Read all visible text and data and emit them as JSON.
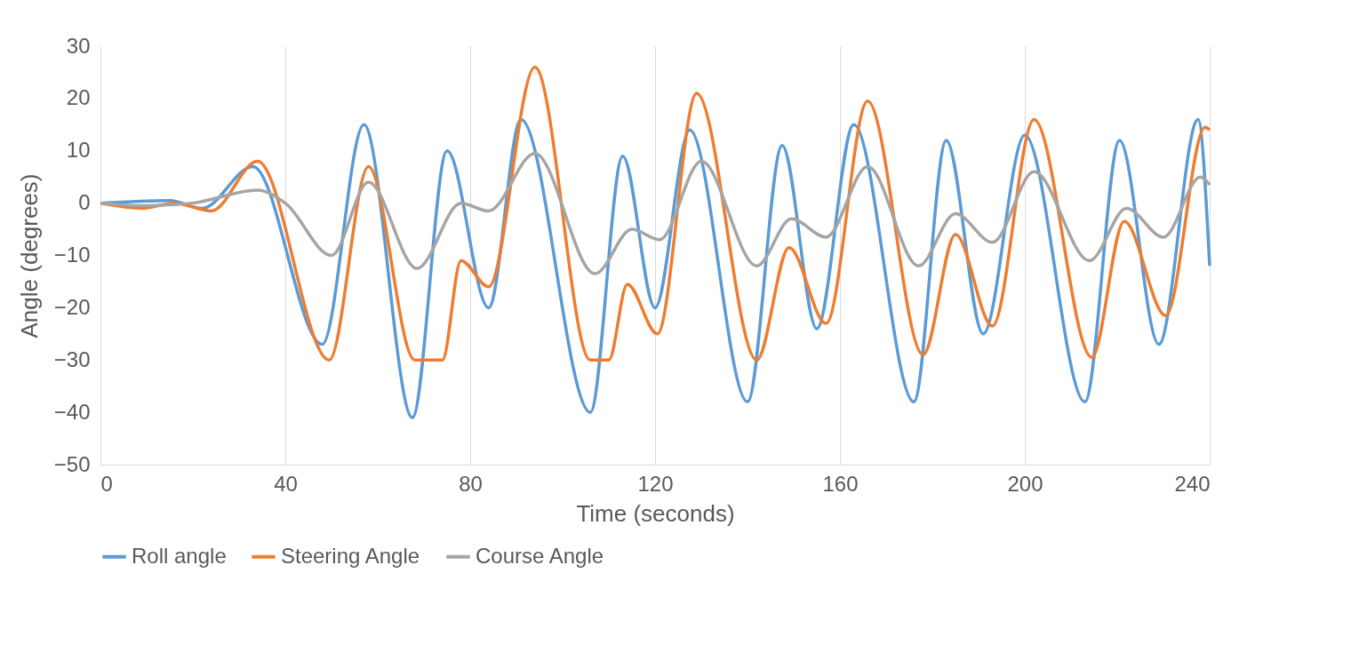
{
  "chart_data": {
    "type": "line",
    "xlabel": "Time (seconds)",
    "ylabel": "Angle (degrees)",
    "xlim": [
      0,
      240
    ],
    "xticks": [
      0,
      40,
      80,
      120,
      160,
      200,
      240
    ],
    "ylim": [
      -50,
      30
    ],
    "yticks": [
      -50,
      -40,
      -30,
      -20,
      -10,
      0,
      10,
      20,
      30
    ],
    "grid": "x",
    "legend": "bottom",
    "marker": "none",
    "line_style": "solid",
    "series": [
      {
        "name": "Roll angle",
        "color": "#5b9bd5",
        "x": [
          0,
          15,
          22,
          33,
          48,
          57,
          67.5,
          75,
          84,
          91,
          106,
          113,
          120,
          127.5,
          140,
          147.5,
          155,
          163,
          176,
          183,
          191,
          200,
          213,
          220.5,
          229,
          237.5,
          240
        ],
        "values": [
          0,
          0.5,
          -1,
          7,
          -27,
          15,
          -41,
          10,
          -20,
          16,
          -40,
          9,
          -20,
          14,
          -38,
          11,
          -24,
          15,
          -38,
          12,
          -25,
          13,
          -38,
          12,
          -27,
          16,
          -12
        ]
      },
      {
        "name": "Steering Angle",
        "color": "#ed7d31",
        "x": [
          0,
          9,
          16,
          24,
          34,
          49.5,
          58,
          68,
          74,
          78,
          84,
          94,
          106,
          110,
          114,
          120.5,
          129,
          142,
          149,
          157,
          166,
          178,
          185,
          193,
          202,
          214.5,
          221.5,
          230.5,
          239,
          240
        ],
        "values": [
          0,
          -1,
          0,
          -1.5,
          8,
          -30,
          7,
          -30,
          -30,
          -11,
          -16,
          26,
          -30,
          -30,
          -15.5,
          -25,
          21,
          -30,
          -8.5,
          -23,
          19.5,
          -29,
          -6,
          -23.5,
          16,
          -29.5,
          -3.5,
          -21.5,
          14.5,
          14
        ]
      },
      {
        "name": "Course Angle",
        "color": "#a5a5a5",
        "x": [
          0,
          10,
          20,
          34,
          40,
          50,
          58,
          68.5,
          78,
          84,
          94,
          107,
          115,
          121,
          130,
          142,
          149.5,
          157,
          166,
          177,
          185,
          193,
          202,
          214,
          222,
          230,
          238,
          240
        ],
        "values": [
          0,
          -0.5,
          0,
          2.5,
          0,
          -10,
          4,
          -12.5,
          0,
          -1.5,
          9.5,
          -13.5,
          -5,
          -7,
          8,
          -12,
          -3,
          -6.5,
          7,
          -12,
          -2,
          -7.5,
          6,
          -11,
          -1,
          -6.5,
          5,
          3.5
        ]
      }
    ]
  }
}
